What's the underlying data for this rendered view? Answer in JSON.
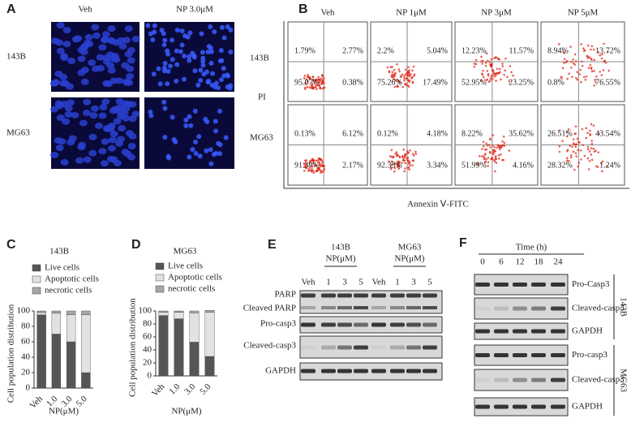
{
  "panels": {
    "A": {
      "label": "A",
      "columns": [
        "Veh",
        "NP  3.0μM"
      ],
      "rows": [
        "143B",
        "MG63"
      ]
    },
    "B": {
      "label": "B",
      "columns": [
        "Veh",
        "NP  1μM",
        "NP  3μM",
        "NP  5μM"
      ],
      "rows": [
        "143B",
        "MG63"
      ],
      "y_label": "PI",
      "x_label": "Annexin Ⅴ-FITC",
      "quadrants": [
        [
          [
            "1.79%",
            "2.77%",
            "95.07%",
            "0.38%"
          ],
          [
            "2.2%",
            "5.04%",
            "75.26%",
            "17.49%"
          ],
          [
            "12.23%",
            "11.57%",
            "52.95%",
            "23.25%"
          ],
          [
            "8.94%",
            "13.72%",
            "0.8%",
            "76.55%"
          ]
        ],
        [
          [
            "0.13%",
            "6.12%",
            "91.39%",
            "2.17%"
          ],
          [
            "0.12%",
            "4.18%",
            "92.35%",
            "3.34%"
          ],
          [
            "8.22%",
            "35.62%",
            "51.99%",
            "4.16%"
          ],
          [
            "26.51%",
            "43.54%",
            "28.32%",
            "1.24%"
          ]
        ]
      ]
    },
    "E": {
      "label": "E",
      "groups": [
        {
          "cell": "143B",
          "unit": "NP(μM)"
        },
        {
          "cell": "MG63",
          "unit": "NP(μM)"
        }
      ],
      "lanes": [
        "Veh",
        "1",
        "3",
        "5",
        "Veh",
        "1",
        "3",
        "5"
      ],
      "rows": [
        "PARP",
        "Cleaved PARP",
        "Pro-casp3",
        "Cleaved-casp3",
        "GAPDH"
      ]
    },
    "F": {
      "label": "F",
      "time_label": "Time  (h)",
      "lanes": [
        "0",
        "6",
        "12",
        "18",
        "24"
      ],
      "groups": [
        {
          "cell": "143B",
          "rows": [
            "Pro-Casp3",
            "Cleaved-casp3",
            "GAPDH"
          ]
        },
        {
          "cell": "MG63",
          "rows": [
            "Pro-casp3",
            "Cleaved-casp3",
            "GAPDH"
          ]
        }
      ]
    }
  },
  "chart_data": [
    {
      "type": "bar",
      "label": "C",
      "title": "143B",
      "categories": [
        "Veh",
        "1.0",
        "3.0",
        "5.0"
      ],
      "x_label": "NP(μM)",
      "y_label": "Cell population distribution",
      "stacked": true,
      "ylim": [
        0,
        100
      ],
      "yticks": [
        0,
        20,
        40,
        60,
        80,
        100
      ],
      "series": [
        {
          "name": "Live cells",
          "color": "#555555",
          "values": [
            95,
            70,
            60,
            20
          ]
        },
        {
          "name": "Apoptotic cells",
          "color": "#e2e2e2",
          "values": [
            3,
            27,
            35,
            75
          ]
        },
        {
          "name": "necrotic cells",
          "color": "#a6a6a6",
          "values": [
            2,
            3,
            5,
            5
          ]
        }
      ]
    },
    {
      "type": "bar",
      "label": "D",
      "title": "MG63",
      "categories": [
        "Veh",
        "1.0",
        "3.0",
        "5.0"
      ],
      "x_label": "NP(μM)",
      "y_label": "Cell population distribution",
      "stacked": true,
      "ylim": [
        0,
        100
      ],
      "yticks": [
        0,
        20,
        40,
        60,
        80,
        100
      ],
      "series": [
        {
          "name": "Live cells",
          "color": "#555555",
          "values": [
            93,
            88,
            52,
            30
          ]
        },
        {
          "name": "Apoptotic cells",
          "color": "#e2e2e2",
          "values": [
            5,
            10,
            45,
            68
          ]
        },
        {
          "name": "necrotic cells",
          "color": "#a6a6a6",
          "values": [
            2,
            2,
            3,
            3
          ]
        }
      ]
    }
  ]
}
